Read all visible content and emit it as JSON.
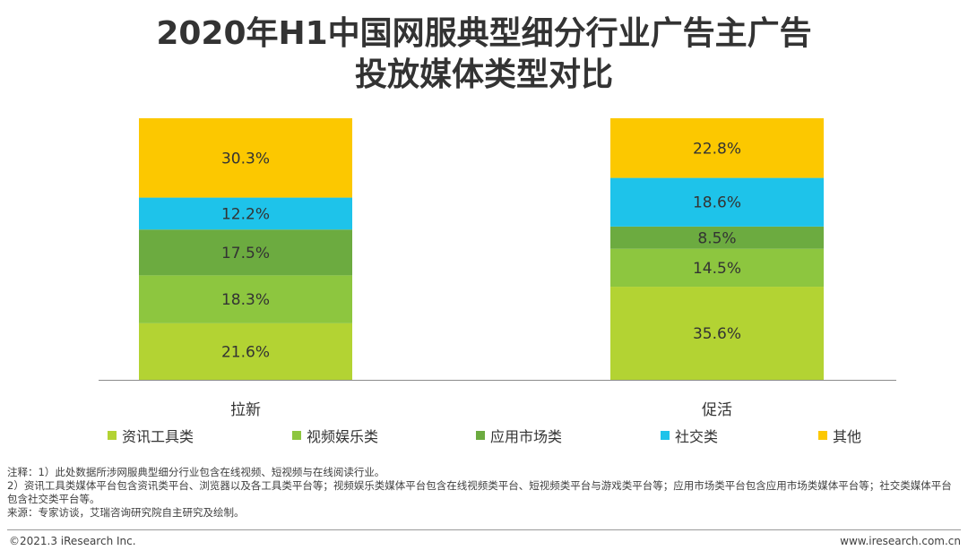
{
  "title_line1": "2020年H1中国网服典型细分行业广告主广告",
  "title_line2": "投放媒体类型对比",
  "chart_data": {
    "type": "bar",
    "stacked": true,
    "categories": [
      "拉新",
      "促活"
    ],
    "series": [
      {
        "name": "资讯工具类",
        "color": "#b3d333",
        "values": [
          21.6,
          35.6
        ],
        "labels": [
          "21.6%",
          "35.6%"
        ]
      },
      {
        "name": "视频娱乐类",
        "color": "#8dc63f",
        "values": [
          18.3,
          14.5
        ],
        "labels": [
          "18.3%",
          "14.5%"
        ]
      },
      {
        "name": "应用市场类",
        "color": "#6cab40",
        "values": [
          17.5,
          8.5
        ],
        "labels": [
          "17.5%",
          "8.5%"
        ]
      },
      {
        "name": "社交类",
        "color": "#1ec3ea",
        "values": [
          12.2,
          18.6
        ],
        "labels": [
          "12.2%",
          "18.6%"
        ]
      },
      {
        "name": "其他",
        "color": "#fcc800",
        "values": [
          30.3,
          22.8
        ],
        "labels": [
          "30.3%",
          "22.8%"
        ]
      }
    ],
    "ylim": [
      0,
      100
    ],
    "legend_position": "bottom"
  },
  "notes": [
    "注释：1）此处数据所涉网服典型细分行业包含在线视频、短视频与在线阅读行业。",
    "2）资讯工具类媒体平台包含资讯类平台、浏览器以及各工具类平台等；视频娱乐类媒体平台包含在线视频类平台、短视频类平台与游戏类平台等；应用市场类平台包含应用市场类媒体平台等；社交类媒体平台包含社交类平台等。",
    "来源：专家访谈，艾瑞咨询研究院自主研究及绘制。"
  ],
  "footer": {
    "left": "©2021.3 iResearch Inc.",
    "right": "www.iresearch.com.cn"
  }
}
